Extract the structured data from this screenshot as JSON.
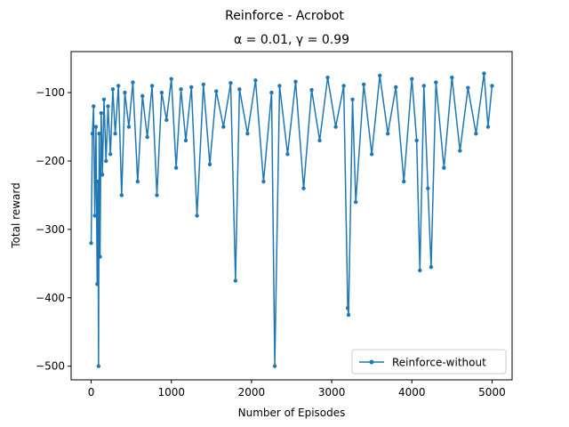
{
  "chart_data": {
    "type": "line",
    "suptitle": "Reinforce - Acrobot",
    "title": "α = 0.01, γ = 0.99",
    "xlabel": "Number of Episodes",
    "ylabel": "Total reward",
    "xlim": [
      -250,
      5250
    ],
    "ylim": [
      -520,
      -40
    ],
    "xticks": [
      0,
      1000,
      2000,
      3000,
      4000,
      5000
    ],
    "yticks": [
      -500,
      -400,
      -300,
      -200,
      -100
    ],
    "xtick_labels": [
      "0",
      "1000",
      "2000",
      "3000",
      "4000",
      "5000"
    ],
    "ytick_labels": [
      "−500",
      "−400",
      "−300",
      "−200",
      "−100"
    ],
    "legend": {
      "position": "lower-right"
    },
    "series": [
      {
        "name": "Reinforce-without",
        "color": "#1f77b4",
        "marker": "circle",
        "x": [
          0,
          15,
          30,
          45,
          60,
          75,
          85,
          92,
          100,
          110,
          125,
          140,
          160,
          185,
          210,
          240,
          270,
          300,
          340,
          380,
          420,
          470,
          520,
          580,
          640,
          700,
          760,
          820,
          880,
          940,
          1000,
          1060,
          1120,
          1180,
          1250,
          1320,
          1400,
          1480,
          1560,
          1650,
          1740,
          1800,
          1850,
          1950,
          2050,
          2150,
          2250,
          2290,
          2350,
          2450,
          2550,
          2650,
          2750,
          2850,
          2950,
          3050,
          3150,
          3200,
          3210,
          3260,
          3300,
          3400,
          3500,
          3600,
          3700,
          3800,
          3900,
          4000,
          4060,
          4100,
          4150,
          4200,
          4240,
          4300,
          4400,
          4500,
          4600,
          4700,
          4800,
          4900,
          4950,
          5000
        ],
        "y": [
          -320,
          -160,
          -120,
          -280,
          -150,
          -380,
          -230,
          -500,
          -160,
          -340,
          -130,
          -220,
          -110,
          -200,
          -120,
          -190,
          -95,
          -160,
          -90,
          -250,
          -100,
          -150,
          -85,
          -230,
          -105,
          -165,
          -90,
          -250,
          -100,
          -140,
          -80,
          -210,
          -95,
          -170,
          -92,
          -280,
          -88,
          -205,
          -98,
          -150,
          -86,
          -375,
          -95,
          -160,
          -82,
          -230,
          -100,
          -500,
          -90,
          -190,
          -84,
          -240,
          -96,
          -170,
          -78,
          -150,
          -90,
          -415,
          -425,
          -110,
          -260,
          -88,
          -190,
          -75,
          -160,
          -92,
          -230,
          -80,
          -170,
          -360,
          -90,
          -240,
          -355,
          -85,
          -210,
          -78,
          -185,
          -93,
          -160,
          -72,
          -150,
          -90
        ]
      }
    ]
  }
}
